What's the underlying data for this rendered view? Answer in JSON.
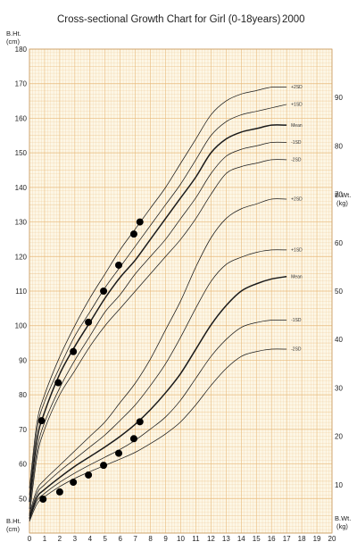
{
  "chart_data": {
    "type": "line",
    "title": "Cross-sectional Growth Chart for Girl (0-18years)",
    "title_year": "2000",
    "left_axis": {
      "label": "B.Ht.",
      "unit": "(cm)",
      "ylim": [
        40,
        180
      ],
      "ticks": [
        50,
        60,
        70,
        80,
        90,
        100,
        110,
        120,
        130,
        140,
        150,
        160,
        170,
        180
      ]
    },
    "left_axis_bottom": {
      "label": "B.Ht.",
      "unit": "(cm)"
    },
    "right_axis": {
      "label": "B.Wt.",
      "unit": "(kg)",
      "ylim": [
        0,
        100
      ],
      "ticks": [
        10,
        20,
        30,
        40,
        50,
        60,
        70,
        80,
        90
      ]
    },
    "right_axis_bottom": {
      "label": "B.Wt.",
      "unit": "(kg)"
    },
    "x_axis": {
      "xlim": [
        0,
        20
      ],
      "ticks": [
        0,
        1,
        2,
        3,
        4,
        5,
        6,
        7,
        8,
        9,
        10,
        11,
        12,
        13,
        14,
        15,
        16,
        17,
        18,
        19,
        20
      ]
    },
    "grid": true,
    "grid_color": "#e8b97a",
    "background_color": "#fdf7e6",
    "height_curves": [
      {
        "name": "+2SD",
        "x": [
          0,
          0.5,
          1,
          2,
          3,
          4,
          5,
          6,
          7,
          8,
          9,
          10,
          11,
          12,
          13,
          14,
          15,
          16,
          17
        ],
        "y": [
          53,
          72,
          80,
          91,
          100,
          108,
          115,
          122,
          128,
          134,
          140,
          147,
          154,
          161,
          165,
          167,
          168,
          169,
          169
        ]
      },
      {
        "name": "+1SD",
        "x": [
          0,
          0.5,
          1,
          2,
          3,
          4,
          5,
          6,
          7,
          8,
          9,
          10,
          11,
          12,
          13,
          14,
          15,
          16,
          17
        ],
        "y": [
          51,
          70,
          78,
          88,
          97,
          104,
          111,
          117,
          123,
          129,
          135,
          141,
          148,
          155,
          159,
          161,
          162,
          163,
          164
        ]
      },
      {
        "name": "Mean",
        "x": [
          0,
          0.5,
          1,
          2,
          3,
          4,
          5,
          6,
          7,
          8,
          9,
          10,
          11,
          12,
          13,
          14,
          15,
          16,
          17
        ],
        "y": [
          49,
          67,
          75,
          86,
          94,
          101,
          108,
          114,
          119,
          125,
          131,
          137,
          143,
          150,
          154,
          156,
          157,
          158,
          158
        ]
      },
      {
        "name": "-1SD",
        "x": [
          0,
          0.5,
          1,
          2,
          3,
          4,
          5,
          6,
          7,
          8,
          9,
          10,
          11,
          12,
          13,
          14,
          15,
          16,
          17
        ],
        "y": [
          47,
          64,
          72,
          82,
          90,
          97,
          104,
          109,
          115,
          120,
          125,
          131,
          137,
          144,
          149,
          151,
          152,
          153,
          153
        ]
      },
      {
        "name": "-2SD",
        "x": [
          0,
          0.5,
          1,
          2,
          3,
          4,
          5,
          6,
          7,
          8,
          9,
          10,
          11,
          12,
          13,
          14,
          15,
          16,
          17
        ],
        "y": [
          45,
          62,
          70,
          80,
          87,
          94,
          100,
          105,
          110,
          115,
          120,
          125,
          131,
          138,
          144,
          146,
          147,
          148,
          148
        ]
      }
    ],
    "weight_curves": [
      {
        "name": "+2SD",
        "x": [
          0,
          0.5,
          1,
          2,
          3,
          4,
          5,
          6,
          7,
          8,
          9,
          10,
          11,
          12,
          13,
          14,
          15,
          16,
          17
        ],
        "y": [
          4,
          9,
          11,
          14,
          17,
          20,
          23,
          27,
          31,
          36,
          42,
          48,
          55,
          61,
          65,
          67,
          68,
          69,
          69
        ]
      },
      {
        "name": "+1SD",
        "x": [
          0,
          0.5,
          1,
          2,
          3,
          4,
          5,
          6,
          7,
          8,
          9,
          10,
          11,
          12,
          13,
          14,
          15,
          16,
          17
        ],
        "y": [
          3.5,
          8.2,
          10,
          12.8,
          15.3,
          17.8,
          20.3,
          23.3,
          26.5,
          30.5,
          35,
          40.5,
          46.5,
          52,
          55.5,
          57,
          58,
          58.5,
          58.5
        ]
      },
      {
        "name": "Mean",
        "x": [
          0,
          0.5,
          1,
          2,
          3,
          4,
          5,
          6,
          7,
          8,
          9,
          10,
          11,
          12,
          13,
          14,
          15,
          16,
          17
        ],
        "y": [
          3,
          7.4,
          9,
          11.5,
          13.8,
          15.8,
          17.8,
          20,
          22.5,
          25.5,
          29,
          33,
          38,
          43,
          47,
          50,
          51.5,
          52.5,
          53
        ]
      },
      {
        "name": "-1SD",
        "x": [
          0,
          0.5,
          1,
          2,
          3,
          4,
          5,
          6,
          7,
          8,
          9,
          10,
          11,
          12,
          13,
          14,
          15,
          16,
          17
        ],
        "y": [
          2.7,
          6.7,
          8.2,
          10.5,
          12.4,
          14.1,
          15.7,
          17.3,
          19.2,
          21.5,
          24,
          27.5,
          32,
          36.5,
          40,
          42.5,
          43.5,
          44,
          44
        ]
      },
      {
        "name": "-2SD",
        "x": [
          0,
          0.5,
          1,
          2,
          3,
          4,
          5,
          6,
          7,
          8,
          9,
          10,
          11,
          12,
          13,
          14,
          15,
          16,
          17
        ],
        "y": [
          2.4,
          6,
          7.5,
          9.6,
          11.3,
          12.7,
          14,
          15.3,
          16.7,
          18.5,
          20.5,
          23,
          26.5,
          30.5,
          34,
          36.5,
          37.5,
          38,
          38
        ]
      }
    ],
    "height_points": {
      "x": [
        0.8,
        1.9,
        2.9,
        3.9,
        4.9,
        5.9,
        6.9,
        7.3
      ],
      "y": [
        72.5,
        83.5,
        92.5,
        101,
        110,
        117.5,
        126.5,
        130
      ]
    },
    "weight_points": {
      "x": [
        0.9,
        2.0,
        2.9,
        3.9,
        4.9,
        5.9,
        6.9,
        7.3
      ],
      "y": [
        7,
        8.5,
        10.5,
        12,
        14,
        16.5,
        19.5,
        23
      ]
    }
  }
}
